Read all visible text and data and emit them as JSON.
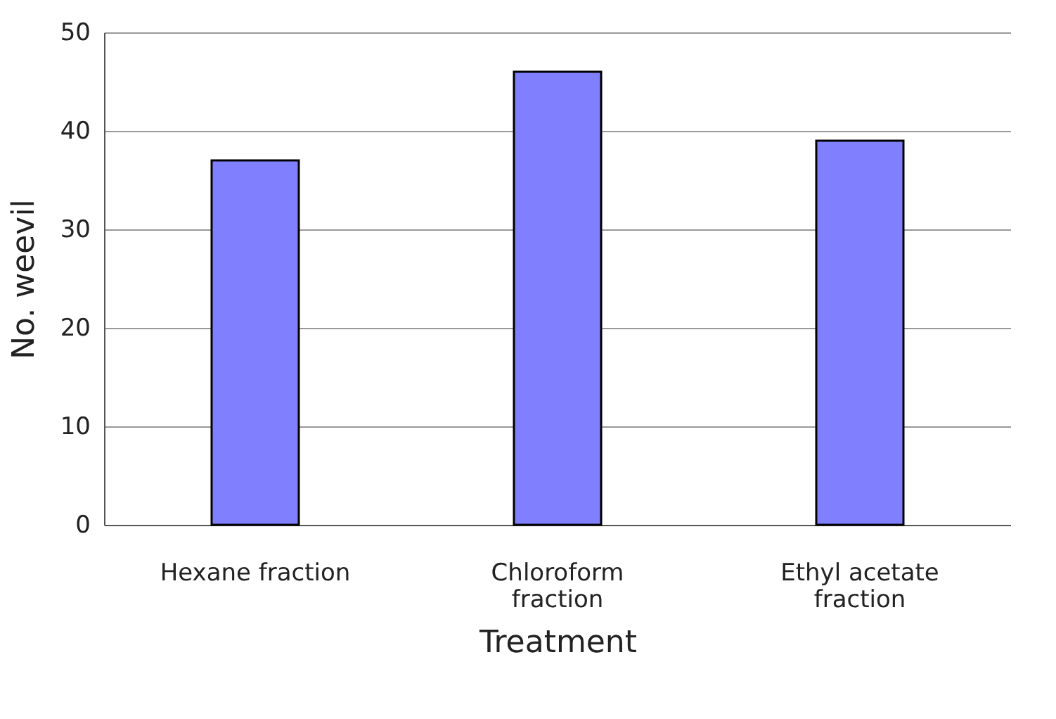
{
  "chart_data": {
    "type": "bar",
    "xlabel": "Treatment",
    "ylabel": "No. weevil",
    "categories": [
      "Hexane fraction",
      "Chloroform fraction",
      "Ethyl acetate fraction"
    ],
    "values": [
      37,
      46,
      39
    ],
    "color": "#8080ff",
    "ylim": [
      0,
      50
    ],
    "yticks": [
      0,
      10,
      20,
      30,
      40,
      50
    ],
    "grid": "y"
  }
}
